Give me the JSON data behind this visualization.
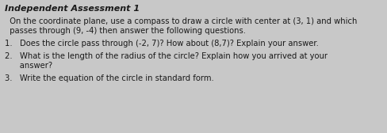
{
  "background_color": "#c8c8c8",
  "title": "Independent Assessment 1",
  "title_fontsize": 8.0,
  "body_fontsize": 7.2,
  "line1": "  On the coordinate plane, use a compass to draw a circle with center at (3, 1) and which",
  "line2": "  passes through (9, -4) then answer the following questions.",
  "item1": "1.   Does the circle pass through (-2, 7)? How about (8,7)? Explain your answer.",
  "item2a": "2.   What is the length of the radius of the circle? Explain how you arrived at your",
  "item2b": "      answer?",
  "item3": "3.   Write the equation of the circle in standard form.",
  "text_color": "#1a1a1a",
  "font_family": "DejaVu Sans"
}
